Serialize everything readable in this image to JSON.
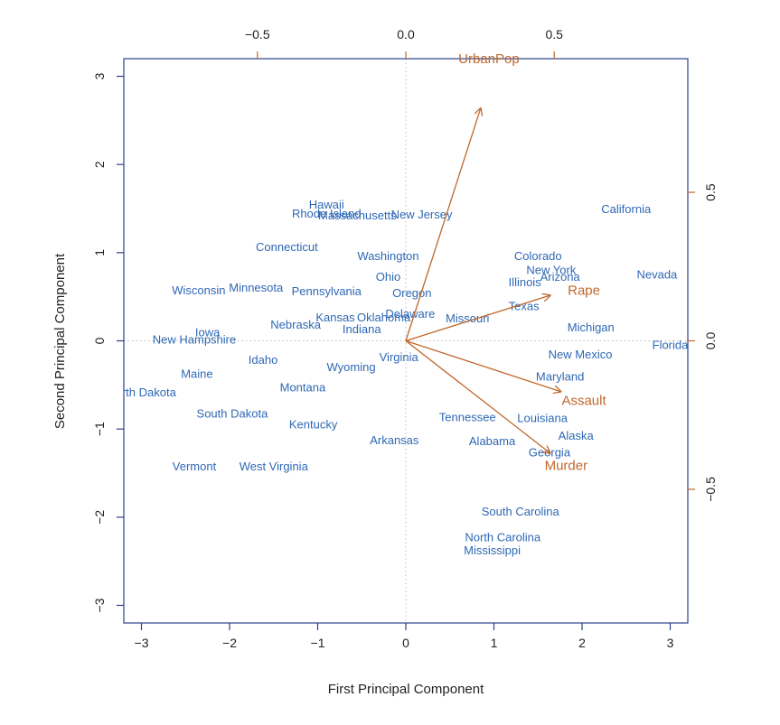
{
  "chart_data": {
    "type": "scatter",
    "title": "",
    "xlabel": "First Principal Component",
    "ylabel": "Second Principal Component",
    "xlim": [
      -3.2,
      3.2
    ],
    "ylim": [
      -3.2,
      3.2
    ],
    "x_ticks": [
      -3,
      -2,
      -1,
      0,
      1,
      2,
      3
    ],
    "y_ticks": [
      -3,
      -2,
      -1,
      0,
      1,
      2,
      3
    ],
    "loading_lim": [
      -0.95,
      0.95
    ],
    "top_ticks": [
      -0.5,
      0.0,
      0.5
    ],
    "right_ticks": [
      -0.5,
      0.0,
      0.5
    ],
    "grid": false,
    "reference_lines": "dotted lines at 0 on both axes",
    "colors": {
      "states": "#2e68b5",
      "loadings": "#c0672a",
      "axis": "#2b3f8c",
      "reference": "#bbbbbb"
    },
    "states": [
      {
        "name": "Hawaii",
        "x": -0.9,
        "y": 1.55
      },
      {
        "name": "Rhode Island",
        "x": -0.9,
        "y": 1.45
      },
      {
        "name": "Massachusetts",
        "x": -0.55,
        "y": 1.43
      },
      {
        "name": "New Jersey",
        "x": 0.18,
        "y": 1.44
      },
      {
        "name": "California",
        "x": 2.5,
        "y": 1.5
      },
      {
        "name": "Connecticut",
        "x": -1.35,
        "y": 1.07
      },
      {
        "name": "Washington",
        "x": -0.2,
        "y": 0.97
      },
      {
        "name": "Colorado",
        "x": 1.5,
        "y": 0.97
      },
      {
        "name": "New York",
        "x": 1.65,
        "y": 0.81
      },
      {
        "name": "Arizona",
        "x": 1.75,
        "y": 0.73
      },
      {
        "name": "Illinois",
        "x": 1.35,
        "y": 0.67
      },
      {
        "name": "Nevada",
        "x": 2.85,
        "y": 0.76
      },
      {
        "name": "Ohio",
        "x": -0.2,
        "y": 0.73
      },
      {
        "name": "Wisconsin",
        "x": -2.35,
        "y": 0.58
      },
      {
        "name": "Minnesota",
        "x": -1.7,
        "y": 0.61
      },
      {
        "name": "Pennsylvania",
        "x": -0.9,
        "y": 0.57
      },
      {
        "name": "Oregon",
        "x": 0.07,
        "y": 0.55
      },
      {
        "name": "Texas",
        "x": 1.34,
        "y": 0.4
      },
      {
        "name": "Kansas",
        "x": -0.8,
        "y": 0.27
      },
      {
        "name": "Oklahoma",
        "x": -0.25,
        "y": 0.27
      },
      {
        "name": "Delaware",
        "x": 0.05,
        "y": 0.31
      },
      {
        "name": "Missouri",
        "x": 0.7,
        "y": 0.26
      },
      {
        "name": "Nebraska",
        "x": -1.25,
        "y": 0.19
      },
      {
        "name": "Indiana",
        "x": -0.5,
        "y": 0.14
      },
      {
        "name": "Michigan",
        "x": 2.1,
        "y": 0.16
      },
      {
        "name": "Iowa",
        "x": -2.25,
        "y": 0.1
      },
      {
        "name": "New Hampshire",
        "x": -2.4,
        "y": 0.02
      },
      {
        "name": "Florida",
        "x": 3.0,
        "y": -0.04
      },
      {
        "name": "New Mexico",
        "x": 1.98,
        "y": -0.15
      },
      {
        "name": "Idaho",
        "x": -1.62,
        "y": -0.21
      },
      {
        "name": "Virginia",
        "x": -0.08,
        "y": -0.18
      },
      {
        "name": "Wyoming",
        "x": -0.62,
        "y": -0.29
      },
      {
        "name": "Maine",
        "x": -2.37,
        "y": -0.37
      },
      {
        "name": "Maryland",
        "x": 1.75,
        "y": -0.4
      },
      {
        "name": "North Dakota",
        "x": -3.0,
        "y": -0.58
      },
      {
        "name": "Montana",
        "x": -1.17,
        "y": -0.52
      },
      {
        "name": "Assault",
        "x": 0,
        "y": 0,
        "skip": true
      },
      {
        "name": "South Dakota",
        "x": -1.97,
        "y": -0.82
      },
      {
        "name": "Tennessee",
        "x": 0.7,
        "y": -0.86
      },
      {
        "name": "Louisiana",
        "x": 1.55,
        "y": -0.87
      },
      {
        "name": "Kentucky",
        "x": -1.05,
        "y": -0.94
      },
      {
        "name": "Alaska",
        "x": 1.93,
        "y": -1.07
      },
      {
        "name": "Arkansas",
        "x": -0.13,
        "y": -1.12
      },
      {
        "name": "Alabama",
        "x": 0.98,
        "y": -1.13
      },
      {
        "name": "Georgia",
        "x": 1.63,
        "y": -1.26
      },
      {
        "name": "Vermont",
        "x": -2.4,
        "y": -1.42
      },
      {
        "name": "West Virginia",
        "x": -1.5,
        "y": -1.42
      },
      {
        "name": "South Carolina",
        "x": 1.3,
        "y": -1.93
      },
      {
        "name": "North Carolina",
        "x": 1.1,
        "y": -2.22
      },
      {
        "name": "Mississippi",
        "x": 0.98,
        "y": -2.37
      }
    ],
    "loadings": [
      {
        "name": "UrbanPop",
        "x": 0.28,
        "y": 0.87,
        "label_x": 0.28,
        "label_y": 0.95
      },
      {
        "name": "Rape",
        "x": 0.54,
        "y": 0.17,
        "label_x": 0.6,
        "label_y": 0.17
      },
      {
        "name": "Assault",
        "x": 0.58,
        "y": -0.19,
        "label_x": 0.6,
        "label_y": -0.2
      },
      {
        "name": "Murder",
        "x": 0.54,
        "y": -0.42,
        "label_x": 0.54,
        "label_y": -0.42
      }
    ]
  }
}
